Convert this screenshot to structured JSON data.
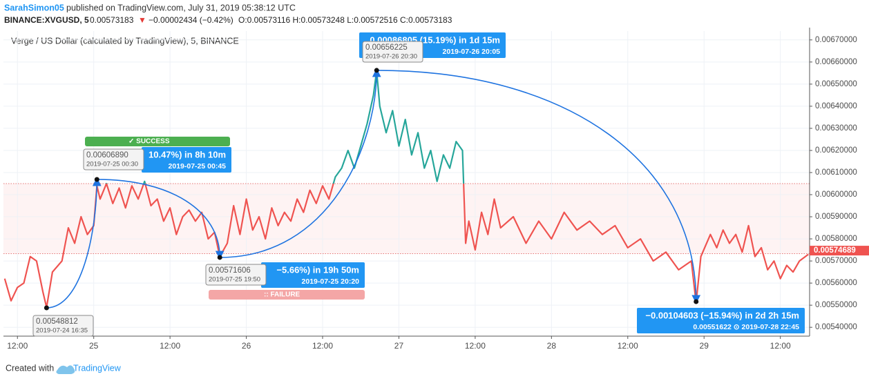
{
  "header": {
    "author": "SarahSimon05",
    "published": "published on TradingView.com, July 31, 2019 05:38:12 UTC",
    "symbol": "BINANCE:XVGUSD, 5",
    "price": "0.00573183",
    "arrow": "▼",
    "change": "−0.00002434 (−0.42%)",
    "ohlc": "O:0.00573116 H:0.00573248 L:0.00572516 C:0.00573183"
  },
  "footer": {
    "created": "Created with",
    "brand": "TradingView"
  },
  "chart_data": {
    "type": "line",
    "title": "Verge / US Dollar (calculated by TradingView), 5, BINANCE",
    "color": "#ef5350",
    "up_color": "#26a69a",
    "curve_color": "#1e73e0",
    "grid": true,
    "x": [
      10,
      11,
      12,
      13,
      14,
      15,
      16,
      16.58,
      17.5,
      19,
      20,
      21,
      22,
      23,
      24,
      24.5,
      25,
      26,
      27,
      28,
      29,
      30,
      31,
      32,
      33,
      34,
      35,
      36,
      37,
      38,
      39,
      40,
      41,
      42,
      43,
      43.83,
      45,
      46,
      47,
      48,
      49,
      50,
      51,
      52,
      53,
      54,
      55,
      56,
      57,
      58,
      59,
      60,
      61,
      62,
      63,
      64,
      65,
      66,
      67,
      68,
      68.5,
      69,
      70,
      71,
      72,
      73,
      74,
      75,
      76,
      77,
      78,
      79,
      80,
      81,
      82,
      82.5,
      83,
      84,
      85,
      86,
      87,
      88,
      90,
      92,
      94,
      96,
      98,
      100,
      102,
      104,
      106,
      108,
      110,
      112,
      114,
      116,
      118,
      118.75,
      119.5,
      121,
      122,
      123,
      124,
      125,
      126,
      127,
      128,
      129,
      130,
      131,
      132,
      133,
      134,
      135,
      136.4
    ],
    "values": [
      0.00562,
      0.00552,
      0.00558,
      0.0056,
      0.00572,
      0.0057,
      0.00556,
      0.00549,
      0.00565,
      0.0057,
      0.00585,
      0.00578,
      0.0059,
      0.00582,
      0.00586,
      0.00604,
      0.00598,
      0.00605,
      0.00596,
      0.00603,
      0.00594,
      0.00604,
      0.00598,
      0.00606,
      0.00595,
      0.00598,
      0.00588,
      0.00594,
      0.00582,
      0.0059,
      0.00593,
      0.00588,
      0.00592,
      0.0058,
      0.00583,
      0.00572,
      0.00578,
      0.00595,
      0.00582,
      0.00598,
      0.00584,
      0.0059,
      0.0058,
      0.00594,
      0.00586,
      0.00592,
      0.00588,
      0.00598,
      0.00592,
      0.00602,
      0.00596,
      0.00604,
      0.00598,
      0.00608,
      0.00612,
      0.0062,
      0.00612,
      0.00622,
      0.00632,
      0.00645,
      0.00656,
      0.0064,
      0.00628,
      0.00638,
      0.00622,
      0.00634,
      0.00618,
      0.00628,
      0.00612,
      0.0062,
      0.00606,
      0.00618,
      0.00612,
      0.00624,
      0.0062,
      0.00578,
      0.00588,
      0.00575,
      0.00592,
      0.00582,
      0.00598,
      0.00585,
      0.0059,
      0.00578,
      0.00588,
      0.0058,
      0.00592,
      0.00584,
      0.00588,
      0.00582,
      0.00586,
      0.00576,
      0.0058,
      0.0057,
      0.00574,
      0.00566,
      0.0057,
      0.00551,
      0.00572,
      0.00582,
      0.00576,
      0.00584,
      0.00578,
      0.00582,
      0.00574,
      0.00586,
      0.00572,
      0.00576,
      0.00566,
      0.0057,
      0.00562,
      0.00568,
      0.00565,
      0.0057,
      0.00573
    ],
    "xlim": [
      9.8,
      136.6
    ],
    "xticks": [
      {
        "value": 12,
        "label": "12:00"
      },
      {
        "value": 24,
        "label": "25"
      },
      {
        "value": 36,
        "label": "12:00"
      },
      {
        "value": 48,
        "label": "26"
      },
      {
        "value": 60,
        "label": "12:00"
      },
      {
        "value": 72,
        "label": "27"
      },
      {
        "value": 84,
        "label": "12:00"
      },
      {
        "value": 96,
        "label": "28"
      },
      {
        "value": 108,
        "label": "12:00"
      },
      {
        "value": 120,
        "label": "29"
      },
      {
        "value": 132,
        "label": "12:00"
      }
    ],
    "ylim": [
      0.00536,
      0.00674
    ],
    "yticks": [
      {
        "value": 0.0054,
        "label": "0.00540000"
      },
      {
        "value": 0.0055,
        "label": "0.00550000"
      },
      {
        "value": 0.0056,
        "label": "0.00560000"
      },
      {
        "value": 0.0057,
        "label": "0.00570000"
      },
      {
        "value": 0.0058,
        "label": "0.00580000"
      },
      {
        "value": 0.0059,
        "label": "0.00590000"
      },
      {
        "value": 0.006,
        "label": "0.00600000"
      },
      {
        "value": 0.0061,
        "label": "0.00610000"
      },
      {
        "value": 0.0062,
        "label": "0.00620000"
      },
      {
        "value": 0.0063,
        "label": "0.00630000"
      },
      {
        "value": 0.0064,
        "label": "0.00640000"
      },
      {
        "value": 0.0065,
        "label": "0.00650000"
      },
      {
        "value": 0.0066,
        "label": "0.00660000"
      },
      {
        "value": 0.0067,
        "label": "0.00670000"
      }
    ],
    "reference_lines": [
      0.00605,
      0.005733
    ],
    "last_price": {
      "value": 0.00574689,
      "label": "0.00574689"
    },
    "points": [
      {
        "x": 16.58,
        "price": 0.00548812,
        "label": "0.00548812",
        "time": "2019-07-24 16:35"
      },
      {
        "x": 24.5,
        "price": 0.0060689,
        "label": "0.00606890",
        "time": "2019-07-25 00:30"
      },
      {
        "x": 43.83,
        "price": 0.00571606,
        "label": "0.00571606",
        "time": "2019-07-25 19:50"
      },
      {
        "x": 68.5,
        "price": 0.00656225,
        "label": "0.00656225",
        "time": "2019-07-26 20:30"
      },
      {
        "x": 118.75,
        "price": 0.00551622
      }
    ],
    "boxes": [
      {
        "line1": "10.47%) in 8h 10m",
        "line2": "2019-07-25  00:45",
        "status": "✓ SUCCESS"
      },
      {
        "line1": "−5.66%) in 19h 50m",
        "line2": "2019-07-25  20:20",
        "status": ":: FAILURE"
      },
      {
        "line1": "0.00086805 (15.19%) in 1d 15m",
        "line2": "2019-07-26  20:05"
      },
      {
        "line1": "−0.00104603 (−15.94%) in 2d 2h 15m",
        "line2": "0.00551622  ⊙ 2019-07-28  22:45"
      }
    ]
  }
}
